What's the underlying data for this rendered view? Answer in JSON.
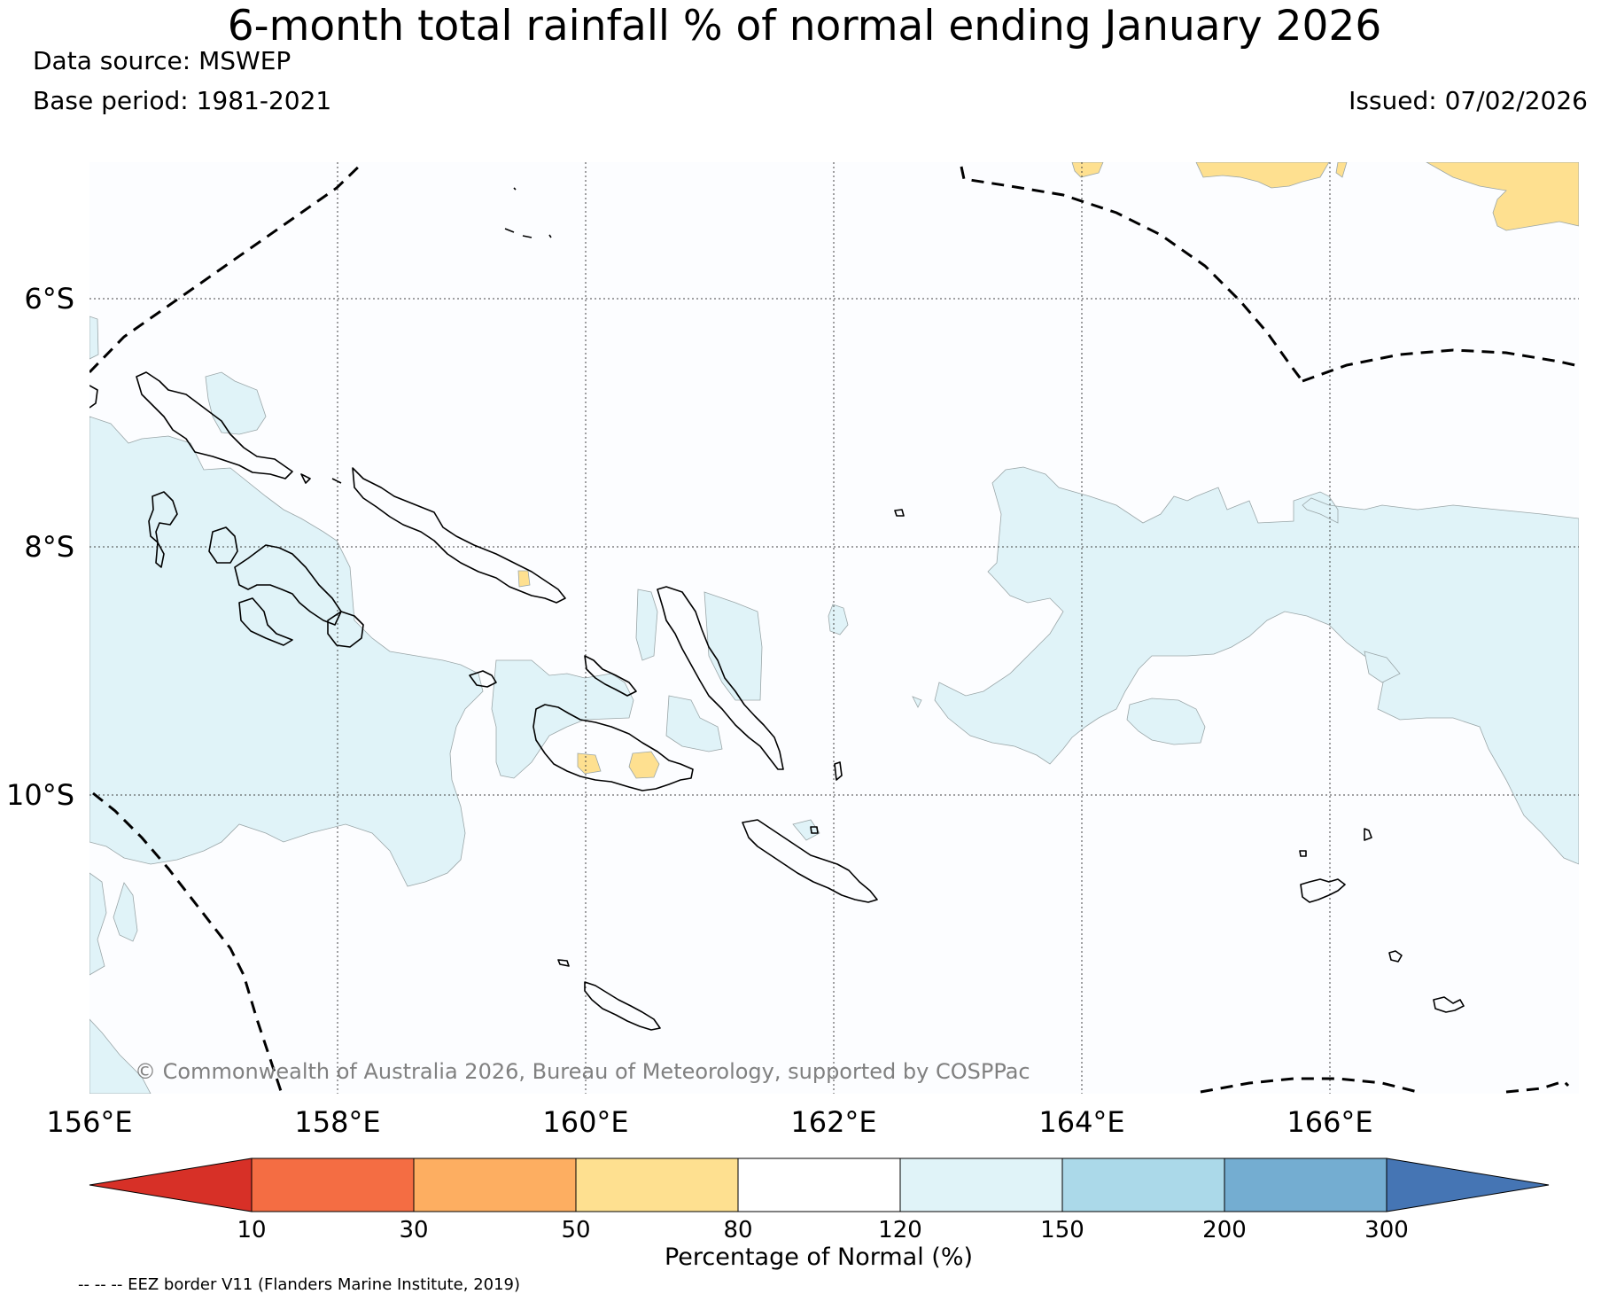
{
  "title": "6-month total rainfall % of normal ending January 2026",
  "data_source": "Data source: MSWEP",
  "base_period": "Base period: 1981-2021",
  "issued": "Issued: 07/02/2026",
  "lat_labels": [
    "6°S",
    "8°S",
    "10°S"
  ],
  "lon_labels": [
    "156°E",
    "158°E",
    "160°E",
    "162°E",
    "164°E",
    "166°E"
  ],
  "copyright": "© Commonwealth of Australia 2026, Bureau of Meteorology, supported by COSPPac",
  "colorbar": {
    "label": "Percentage of Normal (%)",
    "ticks": [
      "10",
      "30",
      "50",
      "80",
      "120",
      "150",
      "200",
      "300"
    ],
    "colors": {
      "below_10": "#d73027",
      "c10_30": "#f46d43",
      "c30_50": "#fdae61",
      "c50_80": "#fee090",
      "c80_120": "#ffffff",
      "c120_150": "#e0f3f8",
      "c150_200": "#abd9e9",
      "c200_300": "#74add1",
      "above_300": "#4575b4"
    }
  },
  "footnote": "-- -- -- EEZ border V11 (Flanders Marine Institute, 2019)"
}
